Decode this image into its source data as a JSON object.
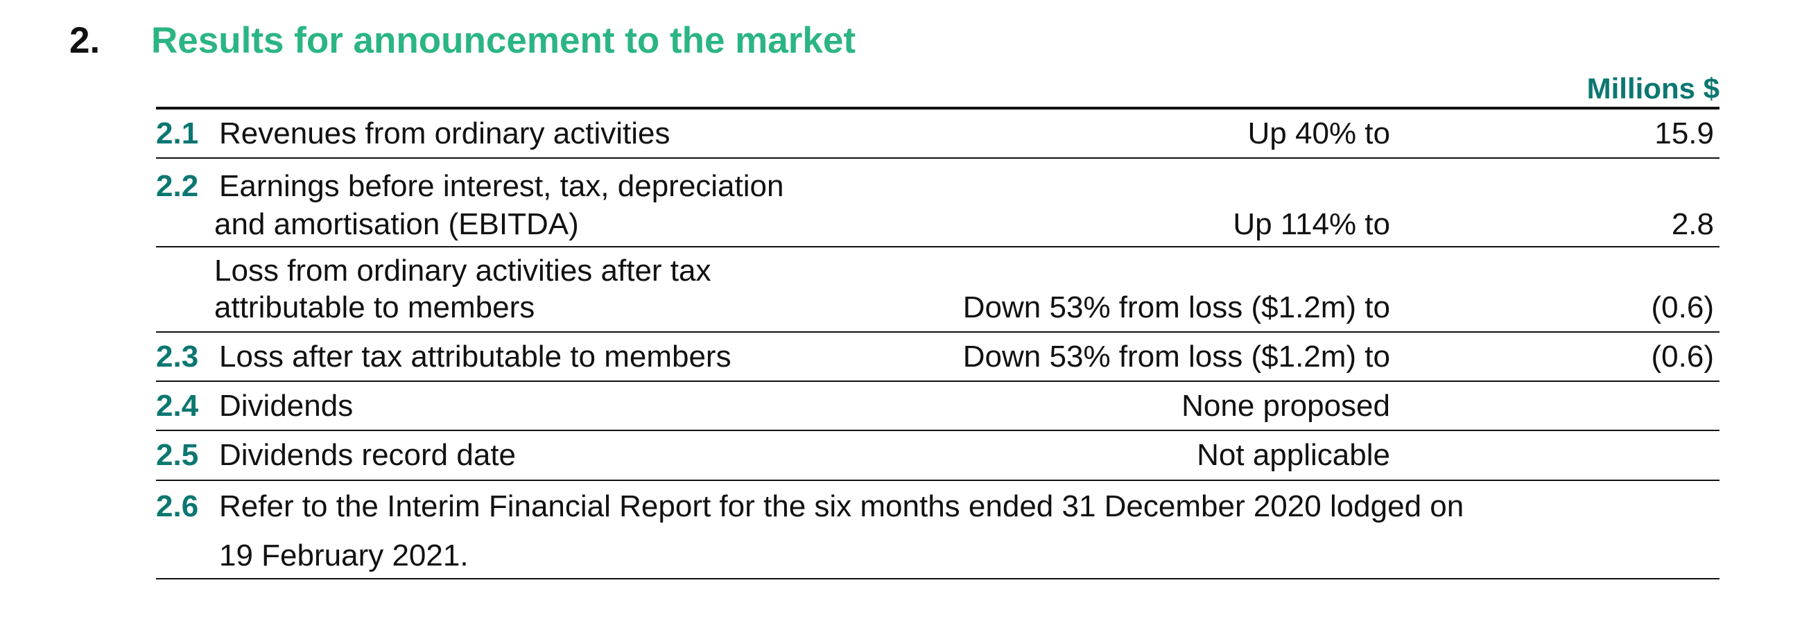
{
  "section": {
    "number": "2.",
    "title": "Results for announcement to the market"
  },
  "table": {
    "unit_label": "Millions $",
    "rows": [
      {
        "number": "2.1",
        "description_lines": [
          "Revenues from ordinary activities"
        ],
        "comparison": "Up 40% to",
        "value": "15.9"
      },
      {
        "number": "2.2",
        "description_lines": [
          "Earnings before interest, tax, depreciation",
          "and amortisation (EBITDA)"
        ],
        "comparison": "Up 114% to",
        "value": "2.8"
      },
      {
        "number": "",
        "description_lines": [
          "Loss from ordinary activities after tax",
          "attributable to members"
        ],
        "comparison": "Down 53% from loss ($1.2m) to",
        "value": "(0.6)"
      },
      {
        "number": "2.3",
        "description_lines": [
          "Loss after tax attributable to members"
        ],
        "comparison": "Down 53% from loss ($1.2m) to",
        "value": "(0.6)"
      },
      {
        "number": "2.4",
        "description_lines": [
          "Dividends"
        ],
        "comparison": "None proposed",
        "value": ""
      },
      {
        "number": "2.5",
        "description_lines": [
          "Dividends record date"
        ],
        "comparison": "Not applicable",
        "value": ""
      },
      {
        "number": "2.6",
        "description_lines": [
          "Refer to the Interim Financial Report for the six months ended 31 December 2020 lodged on",
          "19 February 2021."
        ],
        "comparison": "",
        "value": ""
      }
    ]
  }
}
